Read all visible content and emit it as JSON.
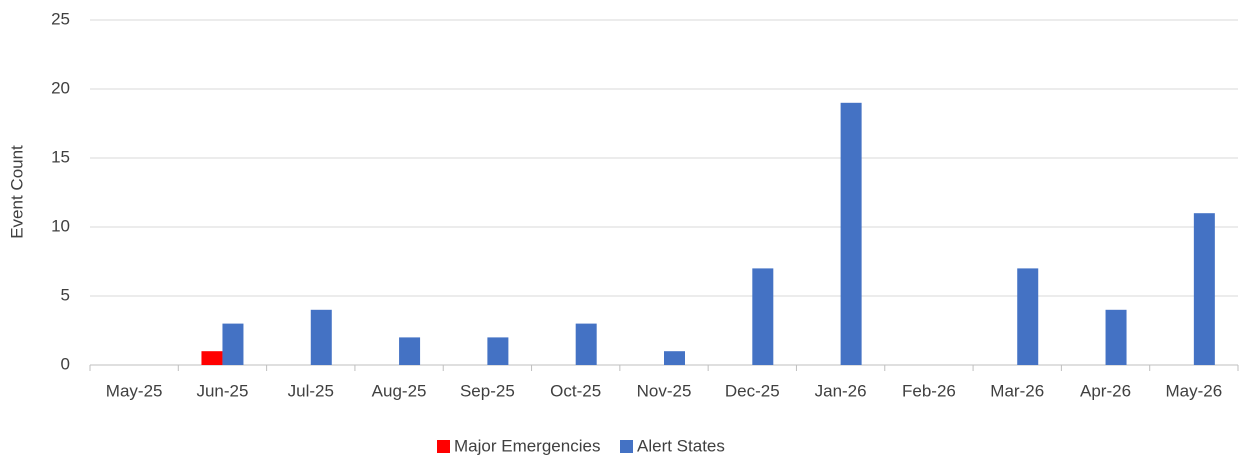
{
  "chart_data": {
    "type": "bar",
    "y_label": "Event Count",
    "categories": [
      "May-25",
      "Jun-25",
      "Jul-25",
      "Aug-25",
      "Sep-25",
      "Oct-25",
      "Nov-25",
      "Dec-25",
      "Jan-26",
      "Feb-26",
      "Mar-26",
      "Apr-26",
      "May-26"
    ],
    "series": [
      {
        "name": "Major Emergencies",
        "color": "#ff0000",
        "values": [
          0,
          1,
          0,
          0,
          0,
          0,
          0,
          0,
          0,
          0,
          0,
          0,
          0
        ]
      },
      {
        "name": "Alert States",
        "color": "#4472c4",
        "values": [
          0,
          3,
          4,
          2,
          2,
          3,
          1,
          7,
          19,
          0,
          7,
          4,
          11
        ]
      }
    ],
    "ylim": [
      0,
      25
    ],
    "yticks": [
      0,
      5,
      10,
      15,
      20,
      25
    ],
    "grid": true,
    "legend": "bottom"
  }
}
